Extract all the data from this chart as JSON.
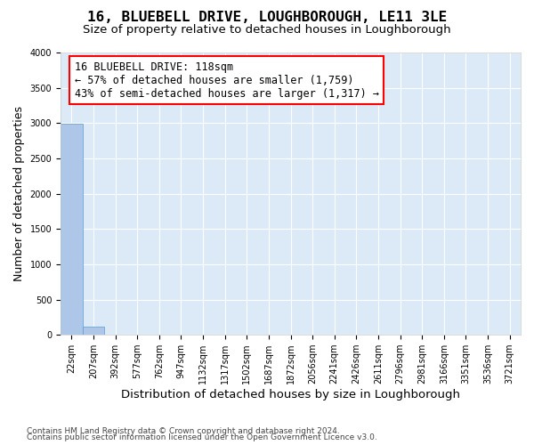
{
  "title": "16, BLUEBELL DRIVE, LOUGHBOROUGH, LE11 3LE",
  "subtitle": "Size of property relative to detached houses in Loughborough",
  "xlabel": "Distribution of detached houses by size in Loughborough",
  "ylabel": "Number of detached properties",
  "bin_labels": [
    "22sqm",
    "207sqm",
    "392sqm",
    "577sqm",
    "762sqm",
    "947sqm",
    "1132sqm",
    "1317sqm",
    "1502sqm",
    "1687sqm",
    "1872sqm",
    "2056sqm",
    "2241sqm",
    "2426sqm",
    "2611sqm",
    "2796sqm",
    "2981sqm",
    "3166sqm",
    "3351sqm",
    "3536sqm",
    "3721sqm"
  ],
  "bar_values": [
    2990,
    120,
    5,
    2,
    1,
    1,
    0,
    0,
    0,
    0,
    0,
    0,
    0,
    0,
    0,
    0,
    0,
    0,
    0,
    0,
    0
  ],
  "bar_color": "#aec6e8",
  "bar_edge_color": "#5b9bd5",
  "bg_color": "#dce9f7",
  "ylim": [
    0,
    4000
  ],
  "yticks": [
    0,
    500,
    1000,
    1500,
    2000,
    2500,
    3000,
    3500,
    4000
  ],
  "annotation_title": "16 BLUEBELL DRIVE: 118sqm",
  "annotation_line1": "← 57% of detached houses are smaller (1,759)",
  "annotation_line2": "43% of semi-detached houses are larger (1,317) →",
  "footnote1": "Contains HM Land Registry data © Crown copyright and database right 2024.",
  "footnote2": "Contains public sector information licensed under the Open Government Licence v3.0.",
  "grid_color": "#ffffff",
  "title_fontsize": 11.5,
  "subtitle_fontsize": 9.5,
  "annotation_fontsize": 8.5,
  "tick_fontsize": 7,
  "ylabel_fontsize": 9,
  "xlabel_fontsize": 9.5
}
